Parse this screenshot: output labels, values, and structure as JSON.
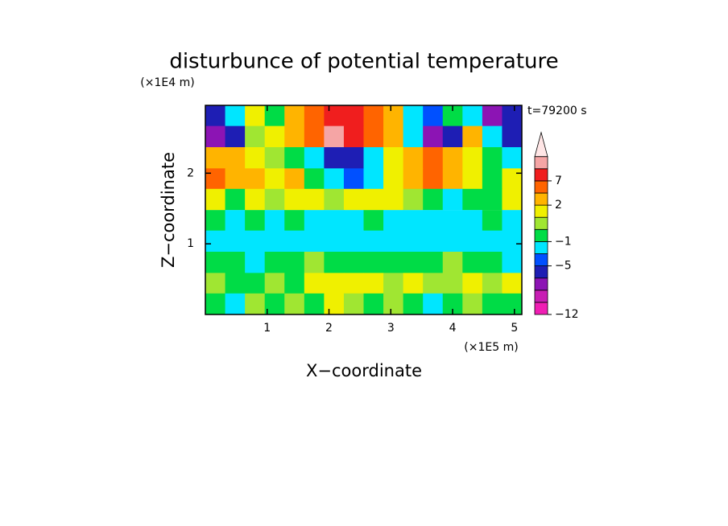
{
  "chart_data": {
    "type": "contour",
    "title": "disturbunce of potential temperature",
    "x_label": "X−coordinate",
    "y_label": "Z−coordinate",
    "x_unit": "(×1E5 m)",
    "y_unit": "(×1E4 m)",
    "annotation": "t=79200 s",
    "xlim": [
      0,
      5.12
    ],
    "ylim": [
      0,
      2.96
    ],
    "xticks": [
      1,
      2,
      3,
      4,
      5
    ],
    "yticks": [
      1,
      2
    ],
    "x": [
      0.16,
      0.48,
      0.8,
      1.12,
      1.44,
      1.76,
      2.08,
      2.4,
      2.72,
      3.04,
      3.36,
      3.68,
      4.0,
      4.32,
      4.64,
      4.96
    ],
    "y": [
      2.81,
      2.52,
      2.22,
      1.92,
      1.63,
      1.33,
      1.04,
      0.74,
      0.44,
      0.15
    ],
    "z": [
      [
        -5.5,
        -2,
        1.5,
        -0.5,
        3,
        5,
        8,
        8,
        5,
        2,
        -2,
        -4,
        -1,
        -2,
        -7,
        -5.5
      ],
      [
        -7,
        -5.5,
        0.5,
        1.5,
        3,
        5,
        10,
        8,
        5,
        3,
        -2,
        -7,
        -5.5,
        3,
        -2,
        -5.5
      ],
      [
        2,
        3,
        1.5,
        0.5,
        -0.5,
        -2,
        -5.5,
        -5.5,
        -2,
        1.5,
        3,
        5,
        2,
        1.5,
        -0.5,
        -2
      ],
      [
        5,
        3,
        3,
        1.5,
        3,
        -0.5,
        -2,
        -3.5,
        -2,
        1.5,
        3,
        5,
        3,
        1.5,
        -0.5,
        1.5
      ],
      [
        1.5,
        -0.5,
        1.5,
        0.5,
        1.5,
        1.5,
        0.5,
        1.5,
        1.5,
        1.5,
        0.5,
        -0.5,
        -2,
        -0.5,
        -0.5,
        1.5
      ],
      [
        -0.5,
        -2,
        -0.5,
        -2,
        -0.5,
        -2,
        -2,
        -2,
        -0.5,
        -2,
        -2,
        -2,
        -2,
        -2,
        -0.5,
        -2
      ],
      [
        -2,
        -2,
        -2,
        -2,
        -2,
        -2,
        -2,
        -2,
        -2,
        -2,
        -2,
        -2,
        -2,
        -2,
        -2,
        -2
      ],
      [
        -0.5,
        -0.5,
        -2,
        -0.5,
        -0.5,
        0.5,
        -0.5,
        -0.5,
        -0.5,
        -0.5,
        -0.5,
        -0.5,
        0.5,
        -0.5,
        -0.5,
        -2
      ],
      [
        0.5,
        -0.5,
        -0.5,
        0.5,
        -0.5,
        1.5,
        1.5,
        1.5,
        1.5,
        0.5,
        1.5,
        0.5,
        0.5,
        1.5,
        0.5,
        1.5
      ],
      [
        -0.5,
        -2,
        0.5,
        -0.5,
        0.5,
        -0.5,
        1.5,
        0.5,
        -0.5,
        0.5,
        -0.5,
        -2,
        -0.5,
        0.5,
        -0.5,
        -0.5
      ]
    ],
    "colorbar": {
      "levels": [
        -12,
        -10,
        -8,
        -6,
        -5,
        -3,
        -1,
        0,
        1,
        2,
        4,
        7,
        9,
        11
      ],
      "colors": [
        "#f01eb4",
        "#c81eb4",
        "#8c14b4",
        "#1e1eb4",
        "#0050ff",
        "#00e6ff",
        "#00dc46",
        "#a0e632",
        "#f0f000",
        "#ffb400",
        "#ff6400",
        "#f01e1e",
        "#f5a5a5"
      ],
      "over_color": "#ffe6e6",
      "ticks": [
        {
          "value": -12,
          "label": "−12"
        },
        {
          "value": -5,
          "label": "−5"
        },
        {
          "value": -1,
          "label": "−1"
        },
        2,
        7
      ]
    }
  }
}
